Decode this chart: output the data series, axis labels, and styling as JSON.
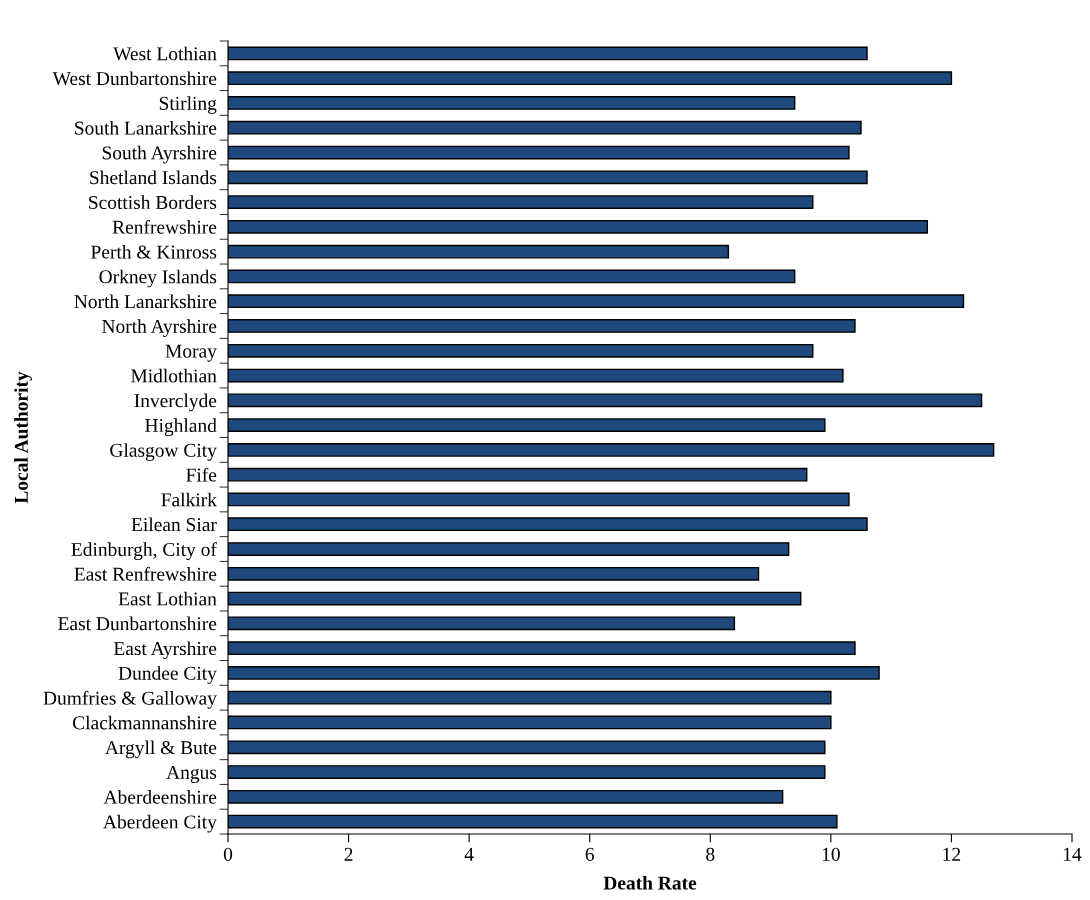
{
  "chart_data": {
    "type": "bar",
    "orientation": "horizontal",
    "xlabel": "Death Rate",
    "ylabel": "Local Authority",
    "categories": [
      "West Lothian",
      "West Dunbartonshire",
      "Stirling",
      "South Lanarkshire",
      "South Ayrshire",
      "Shetland Islands",
      "Scottish Borders",
      "Renfrewshire",
      "Perth & Kinross",
      "Orkney Islands",
      "North Lanarkshire",
      "North Ayrshire",
      "Moray",
      "Midlothian",
      "Inverclyde",
      "Highland",
      "Glasgow City",
      "Fife",
      "Falkirk",
      "Eilean Siar",
      "Edinburgh, City of",
      "East Renfrewshire",
      "East Lothian",
      "East Dunbartonshire",
      "East Ayrshire",
      "Dundee City",
      "Dumfries & Galloway",
      "Clackmannanshire",
      "Argyll & Bute",
      "Angus",
      "Aberdeenshire",
      "Aberdeen City"
    ],
    "values": [
      10.6,
      12.0,
      9.4,
      10.5,
      10.3,
      10.6,
      9.7,
      11.6,
      8.3,
      9.4,
      12.2,
      10.4,
      9.7,
      10.2,
      12.5,
      9.9,
      12.7,
      9.6,
      10.3,
      10.6,
      9.3,
      8.8,
      9.5,
      8.4,
      10.4,
      10.8,
      10.0,
      10.0,
      9.9,
      9.9,
      9.2,
      10.1
    ],
    "color": "#1f497d",
    "xlim": [
      0,
      14
    ],
    "xticks": [
      0,
      2,
      4,
      6,
      8,
      10,
      12,
      14
    ],
    "grid": false,
    "legend": false
  }
}
